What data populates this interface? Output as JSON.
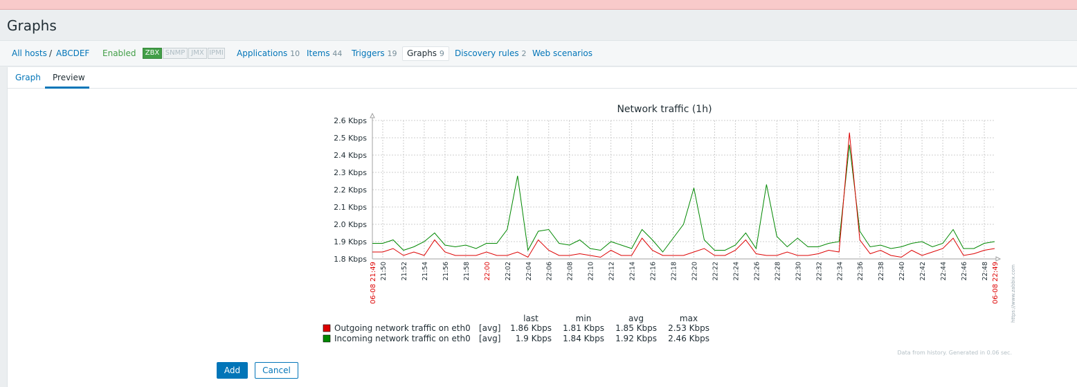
{
  "page": {
    "title": "Graphs"
  },
  "host_nav": {
    "all_hosts": "All hosts",
    "separator": "/",
    "host": "ABCDEF",
    "status": "Enabled",
    "interfaces": [
      "ZBX",
      "SNMP",
      "JMX",
      "IPMI"
    ],
    "links": [
      {
        "label": "Applications",
        "count": "10"
      },
      {
        "label": "Items",
        "count": "44"
      },
      {
        "label": "Triggers",
        "count": "19"
      },
      {
        "label": "Graphs",
        "count": "9"
      },
      {
        "label": "Discovery rules",
        "count": "2"
      },
      {
        "label": "Web scenarios",
        "count": ""
      }
    ]
  },
  "tabs": [
    {
      "label": "Graph"
    },
    {
      "label": "Preview"
    }
  ],
  "buttons": {
    "add": "Add",
    "cancel": "Cancel"
  },
  "colors": {
    "accent": "#0275b8",
    "outgoing": "#dd0000",
    "incoming": "#008800",
    "enabled": "#429e47",
    "alert": "#f8caca"
  },
  "chart_data": {
    "type": "line",
    "title": "Network traffic (1h)",
    "yunit": "Kbps",
    "ylim": [
      1.8,
      2.6
    ],
    "yticks": [
      "1.8 Kbps",
      "1.9 Kbps",
      "2.0 Kbps",
      "2.1 Kbps",
      "2.2 Kbps",
      "2.3 Kbps",
      "2.4 Kbps",
      "2.5 Kbps",
      "2.6 Kbps"
    ],
    "xrange_minutes": [
      0,
      60
    ],
    "x_start_label": "06-08 21:49",
    "x_end_label": "06-08 22:49",
    "x_ticks": [
      {
        "m": 1,
        "label": "21:50"
      },
      {
        "m": 3,
        "label": "21:52"
      },
      {
        "m": 5,
        "label": "21:54"
      },
      {
        "m": 7,
        "label": "21:56"
      },
      {
        "m": 9,
        "label": "21:58"
      },
      {
        "m": 11,
        "label": "22:00",
        "red": true
      },
      {
        "m": 13,
        "label": "22:02"
      },
      {
        "m": 15,
        "label": "22:04"
      },
      {
        "m": 17,
        "label": "22:06"
      },
      {
        "m": 19,
        "label": "22:08"
      },
      {
        "m": 21,
        "label": "22:10"
      },
      {
        "m": 23,
        "label": "22:12"
      },
      {
        "m": 25,
        "label": "22:14"
      },
      {
        "m": 27,
        "label": "22:16"
      },
      {
        "m": 29,
        "label": "22:18"
      },
      {
        "m": 31,
        "label": "22:20"
      },
      {
        "m": 33,
        "label": "22:22"
      },
      {
        "m": 35,
        "label": "22:24"
      },
      {
        "m": 37,
        "label": "22:26"
      },
      {
        "m": 39,
        "label": "22:28"
      },
      {
        "m": 41,
        "label": "22:30"
      },
      {
        "m": 43,
        "label": "22:32"
      },
      {
        "m": 45,
        "label": "22:34"
      },
      {
        "m": 47,
        "label": "22:36"
      },
      {
        "m": 49,
        "label": "22:38"
      },
      {
        "m": 51,
        "label": "22:40"
      },
      {
        "m": 53,
        "label": "22:42"
      },
      {
        "m": 55,
        "label": "22:44"
      },
      {
        "m": 57,
        "label": "22:46"
      },
      {
        "m": 59,
        "label": "22:48"
      }
    ],
    "series": [
      {
        "name": "Outgoing network traffic on eth0",
        "func": "[avg]",
        "last": "1.86 Kbps",
        "min": "1.81 Kbps",
        "avg": "1.85 Kbps",
        "max": "2.53 Kbps",
        "values": [
          1.84,
          1.84,
          1.86,
          1.82,
          1.84,
          1.82,
          1.91,
          1.84,
          1.82,
          1.82,
          1.82,
          1.84,
          1.82,
          1.82,
          1.84,
          1.81,
          1.91,
          1.85,
          1.82,
          1.82,
          1.83,
          1.82,
          1.81,
          1.85,
          1.82,
          1.82,
          1.92,
          1.85,
          1.82,
          1.82,
          1.82,
          1.84,
          1.86,
          1.82,
          1.82,
          1.85,
          1.91,
          1.83,
          1.82,
          1.82,
          1.84,
          1.82,
          1.82,
          1.83,
          1.85,
          1.84,
          2.53,
          1.91,
          1.83,
          1.85,
          1.82,
          1.81,
          1.85,
          1.82,
          1.84,
          1.86,
          1.92,
          1.82,
          1.83,
          1.85,
          1.86
        ]
      },
      {
        "name": "Incoming network traffic on eth0",
        "func": "[avg]",
        "last": "1.9 Kbps",
        "min": "1.84 Kbps",
        "avg": "1.92 Kbps",
        "max": "2.46 Kbps",
        "values": [
          1.89,
          1.89,
          1.91,
          1.85,
          1.87,
          1.9,
          1.95,
          1.88,
          1.87,
          1.88,
          1.86,
          1.89,
          1.89,
          1.97,
          2.28,
          1.85,
          1.96,
          1.97,
          1.89,
          1.88,
          1.91,
          1.86,
          1.85,
          1.9,
          1.88,
          1.86,
          1.97,
          1.91,
          1.84,
          1.92,
          2.0,
          2.21,
          1.91,
          1.85,
          1.85,
          1.88,
          1.95,
          1.86,
          2.23,
          1.93,
          1.87,
          1.92,
          1.87,
          1.87,
          1.89,
          1.9,
          2.46,
          1.96,
          1.87,
          1.88,
          1.86,
          1.87,
          1.89,
          1.9,
          1.87,
          1.89,
          1.97,
          1.86,
          1.86,
          1.89,
          1.9
        ]
      }
    ],
    "legend_headers": [
      "last",
      "min",
      "avg",
      "max"
    ],
    "watermark": "https://www.zabbix.com",
    "footer": "Data from history. Generated in 0.06 sec."
  }
}
